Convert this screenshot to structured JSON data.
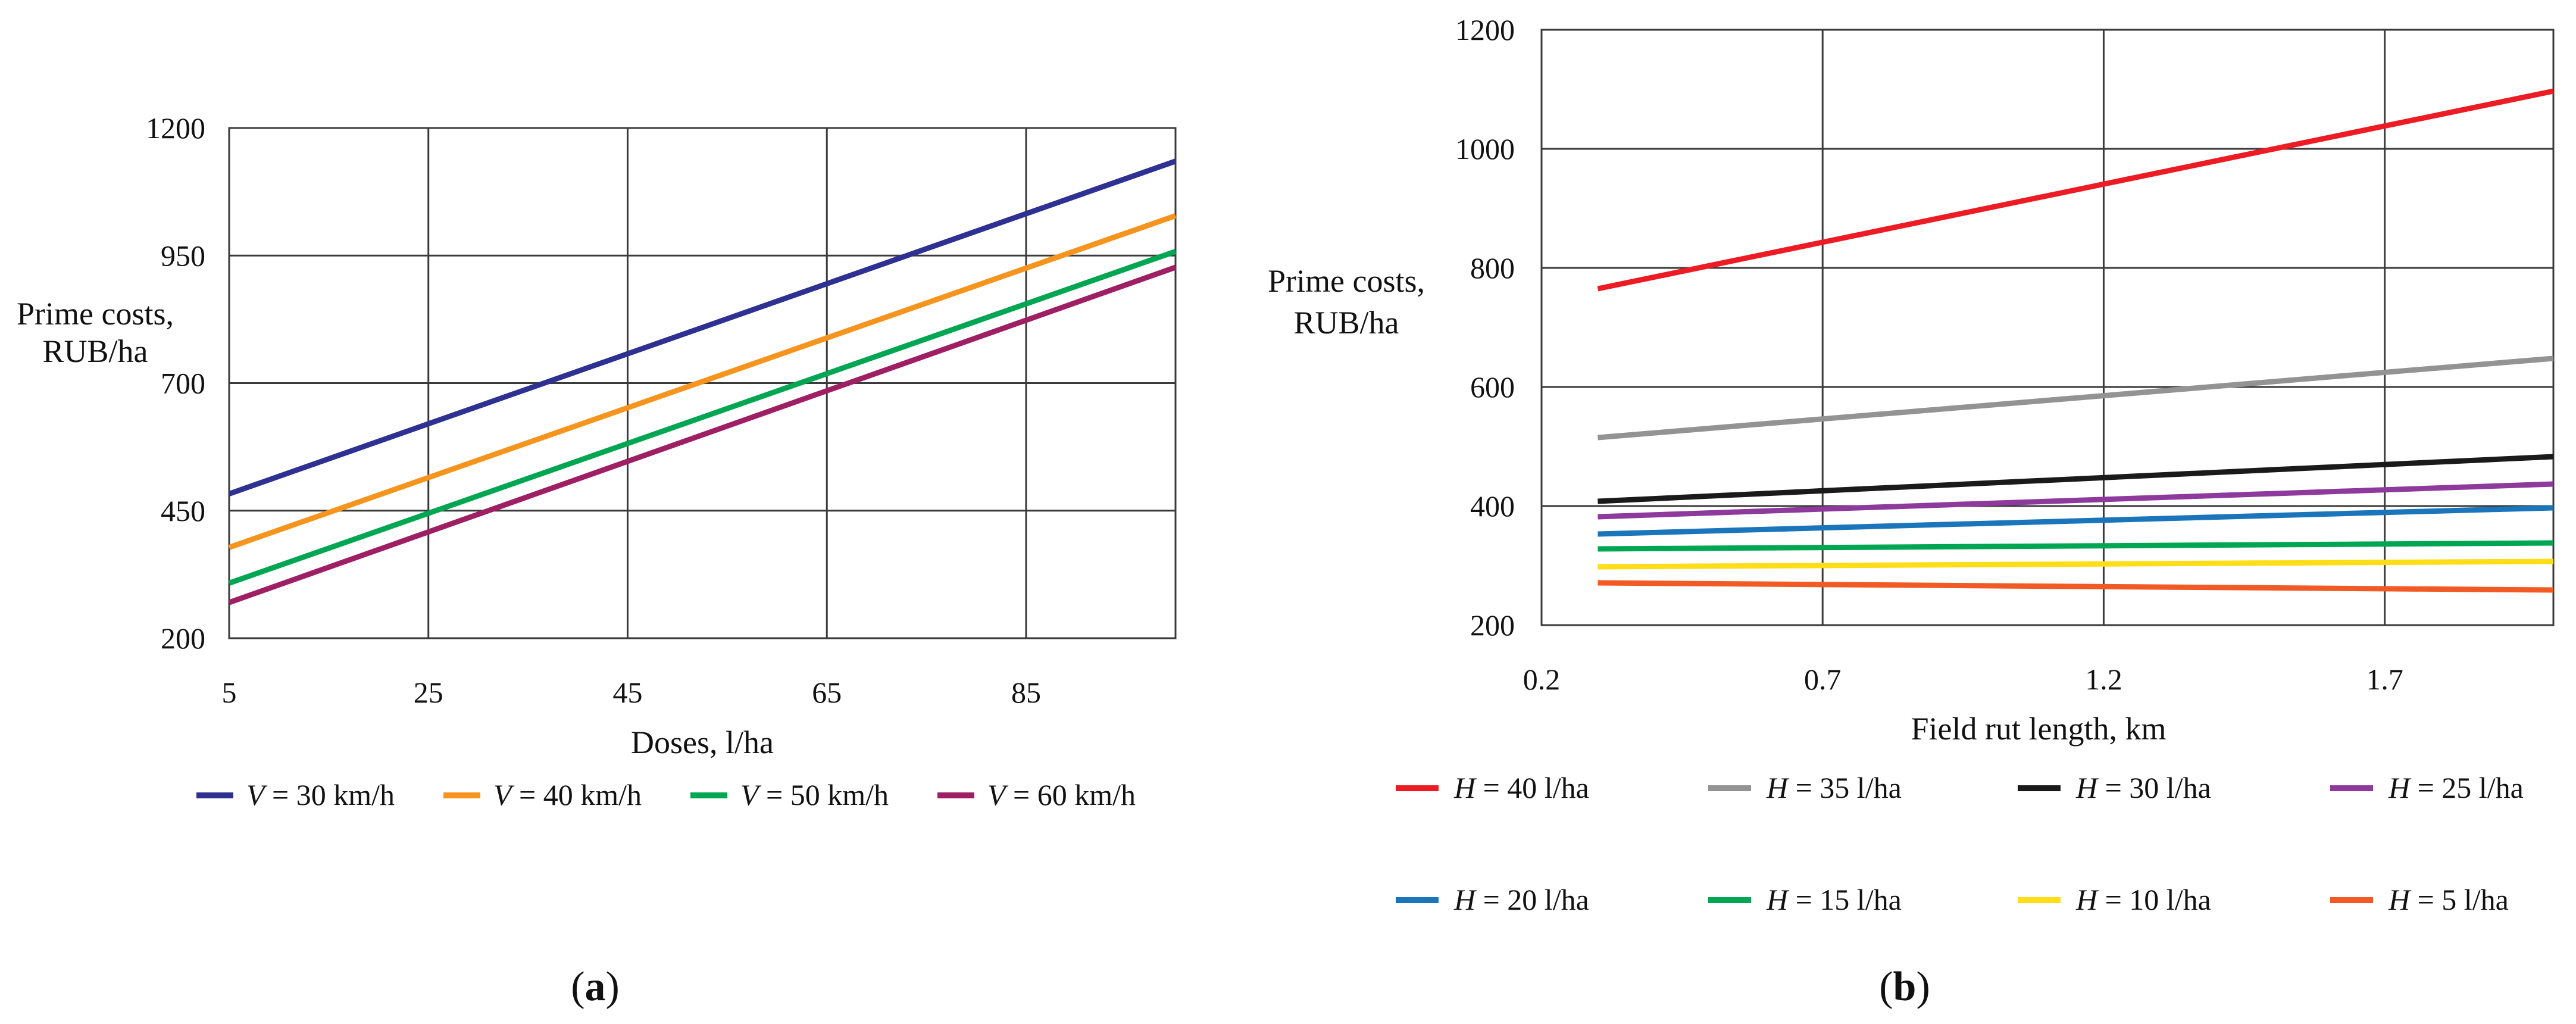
{
  "chart_data": [
    {
      "type": "line",
      "panel_label": "a",
      "title": "",
      "xlabel": "Doses, l/ha",
      "ylabel_lines": [
        "Prime costs,",
        "RUB/ha"
      ],
      "xlim": [
        5,
        100
      ],
      "ylim": [
        200,
        1200
      ],
      "x_ticks": [
        5,
        25,
        45,
        65,
        85
      ],
      "y_ticks": [
        200,
        450,
        700,
        950,
        1200
      ],
      "grid": true,
      "legend_position": "bottom",
      "legend_var": "V",
      "series": [
        {
          "name": "V = 30 km/h",
          "label_var": "V",
          "label_rest": " = 30 km/h",
          "color": "#2e3192",
          "x": [
            5,
            100
          ],
          "y": [
            483,
            1135
          ]
        },
        {
          "name": "V = 40 km/h",
          "label_var": "V",
          "label_rest": " = 40 km/h",
          "color": "#f7941d",
          "x": [
            5,
            100
          ],
          "y": [
            378,
            1028
          ]
        },
        {
          "name": "V = 50 km/h",
          "label_var": "V",
          "label_rest": " = 50 km/h",
          "color": "#00a651",
          "x": [
            5,
            100
          ],
          "y": [
            308,
            958
          ]
        },
        {
          "name": "V = 60 km/h",
          "label_var": "V",
          "label_rest": " = 60 km/h",
          "color": "#9e1f63",
          "x": [
            5,
            100
          ],
          "y": [
            270,
            927
          ]
        }
      ]
    },
    {
      "type": "line",
      "panel_label": "b",
      "title": "",
      "xlabel": "Field rut length, km",
      "ylabel_lines": [
        "Prime costs,",
        "RUB/ha"
      ],
      "xlim": [
        0.2,
        2.0
      ],
      "ylim": [
        200,
        1200
      ],
      "x_ticks": [
        0.2,
        0.7,
        1.2,
        1.7
      ],
      "y_ticks": [
        200,
        400,
        600,
        800,
        1000,
        1200
      ],
      "grid": true,
      "legend_position": "bottom",
      "series": [
        {
          "name": "H = 40 l/ha",
          "label_var": "H",
          "label_rest": " = 40 l/ha",
          "color": "#ed1c24",
          "x": [
            0.3,
            2.0
          ],
          "y": [
            765,
            1097
          ]
        },
        {
          "name": "H = 35 l/ha",
          "label_var": "H",
          "label_rest": " = 35 l/ha",
          "color": "#939393",
          "x": [
            0.3,
            2.0
          ],
          "y": [
            515,
            648
          ]
        },
        {
          "name": "H = 30 l/ha",
          "label_var": "H",
          "label_rest": " = 30 l/ha",
          "color": "#1a1a1a",
          "x": [
            0.3,
            2.0
          ],
          "y": [
            408,
            483
          ]
        },
        {
          "name": "H = 25 l/ha",
          "label_var": "H",
          "label_rest": " = 25 l/ha",
          "color": "#8e3a9d",
          "x": [
            0.3,
            2.0
          ],
          "y": [
            382,
            437
          ]
        },
        {
          "name": "H = 20 l/ha",
          "label_var": "H",
          "label_rest": " = 20 l/ha",
          "color": "#1b75bb",
          "x": [
            0.3,
            2.0
          ],
          "y": [
            353,
            397
          ]
        },
        {
          "name": "H = 15 l/ha",
          "label_var": "H",
          "label_rest": " = 15 l/ha",
          "color": "#00a651",
          "x": [
            0.3,
            2.0
          ],
          "y": [
            328,
            338
          ]
        },
        {
          "name": "H = 10 l/ha",
          "label_var": "H",
          "label_rest": " = 10 l/ha",
          "color": "#ffde17",
          "x": [
            0.3,
            2.0
          ],
          "y": [
            298,
            307
          ]
        },
        {
          "name": "H = 5 l/ha",
          "label_var": "H",
          "label_rest": " = 5 l/ha",
          "color": "#f15a24",
          "x": [
            0.3,
            2.0
          ],
          "y": [
            271,
            259
          ]
        }
      ]
    }
  ]
}
